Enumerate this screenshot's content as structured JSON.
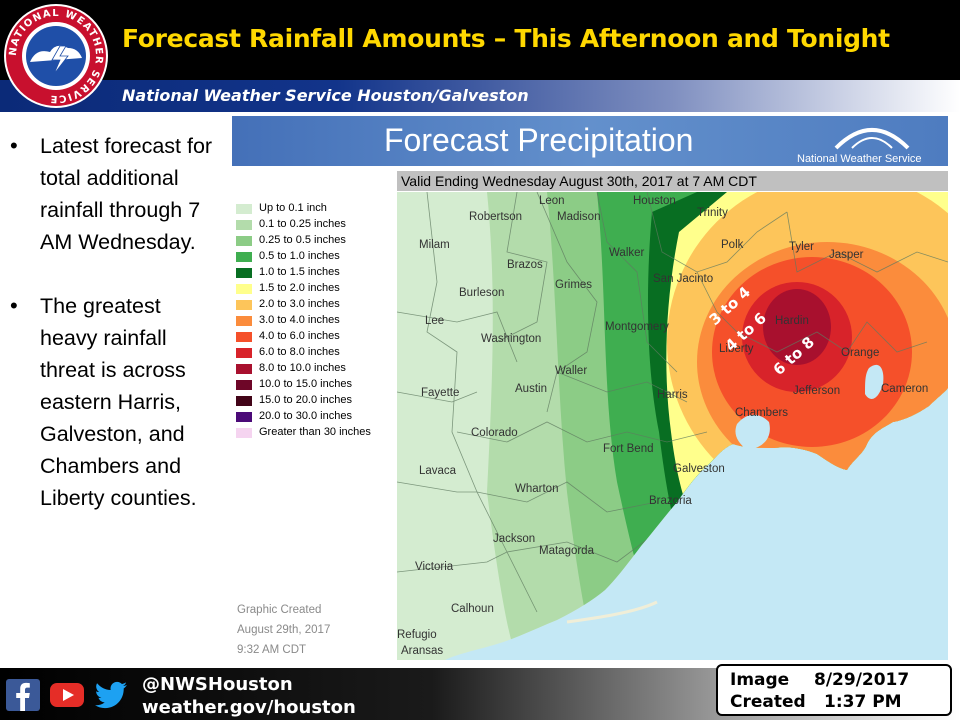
{
  "header": {
    "title": "Forecast Rainfall Amounts – This Afternoon and Tonight",
    "subtitle": "National Weather Service Houston/Galveston",
    "logo_text": "NATIONAL WEATHER SERVICE"
  },
  "bullets": [
    "Latest forecast for total additional rainfall through 7 AM Wednesday.",
    "The greatest heavy rainfall threat is across eastern Harris, Galveston, and Chambers and Liberty counties."
  ],
  "map_panel": {
    "title": "Forecast Precipitation",
    "agency": "National Weather Service",
    "valid": "Valid Ending Wednesday August 30th, 2017 at 7 AM CDT",
    "credit": [
      "Graphic Created",
      "August 29th, 2017",
      "9:32 AM CDT"
    ]
  },
  "legend": [
    {
      "label": "Up to 0.1 inch",
      "color": "#d4ecd0"
    },
    {
      "label": "0.1 to 0.25 inches",
      "color": "#b3dcab"
    },
    {
      "label": "0.25 to 0.5 inches",
      "color": "#8ccc86"
    },
    {
      "label": "0.5 to 1.0 inches",
      "color": "#3fae50"
    },
    {
      "label": "1.0 to 1.5 inches",
      "color": "#086e22"
    },
    {
      "label": "1.5 to 2.0 inches",
      "color": "#ffff8c"
    },
    {
      "label": "2.0 to 3.0 inches",
      "color": "#fdc55a"
    },
    {
      "label": "3.0 to 4.0 inches",
      "color": "#fb8c3c"
    },
    {
      "label": "4.0 to 6.0 inches",
      "color": "#f5502a"
    },
    {
      "label": "6.0 to 8.0 inches",
      "color": "#d8232a"
    },
    {
      "label": "8.0 to 10.0 inches",
      "color": "#a8102e"
    },
    {
      "label": "10.0 to 15.0 inches",
      "color": "#6e0628"
    },
    {
      "label": "15.0 to 20.0 inches",
      "color": "#420418"
    },
    {
      "label": "20.0 to 30.0 inches",
      "color": "#4b0a78"
    },
    {
      "label": "Greater than 30 inches",
      "color": "#f5d4f0"
    }
  ],
  "map_labels": {
    "counties": [
      "Leon",
      "Houston",
      "Trinity",
      "Robertson",
      "Madison",
      "Milam",
      "Polk",
      "Tyler",
      "Jasper",
      "Walker",
      "Brazos",
      "San Jacinto",
      "Grimes",
      "Burleson",
      "Hardin",
      "Montgomery",
      "Lee",
      "Washington",
      "Liberty",
      "Orange",
      "Waller",
      "Austin",
      "Harris",
      "Fayette",
      "Jefferson",
      "Cameron",
      "Chambers",
      "Colorado",
      "Fort Bend",
      "Galveston",
      "Lavaca",
      "Wharton",
      "Brazoria",
      "Jackson",
      "Matagorda",
      "Victoria",
      "Calhoun",
      "Refugio",
      "Aransas"
    ],
    "amounts": [
      "3 to 4",
      "4 to 6",
      "6 to 8"
    ]
  },
  "footer": {
    "handle": "@NWSHouston",
    "website": "weather.gov/houston",
    "image_label": "Image",
    "created_label": "Created",
    "date": "8/29/2017",
    "time": "1:37 PM"
  },
  "icons": [
    "nws-logo",
    "facebook-icon",
    "youtube-icon",
    "twitter-icon"
  ]
}
